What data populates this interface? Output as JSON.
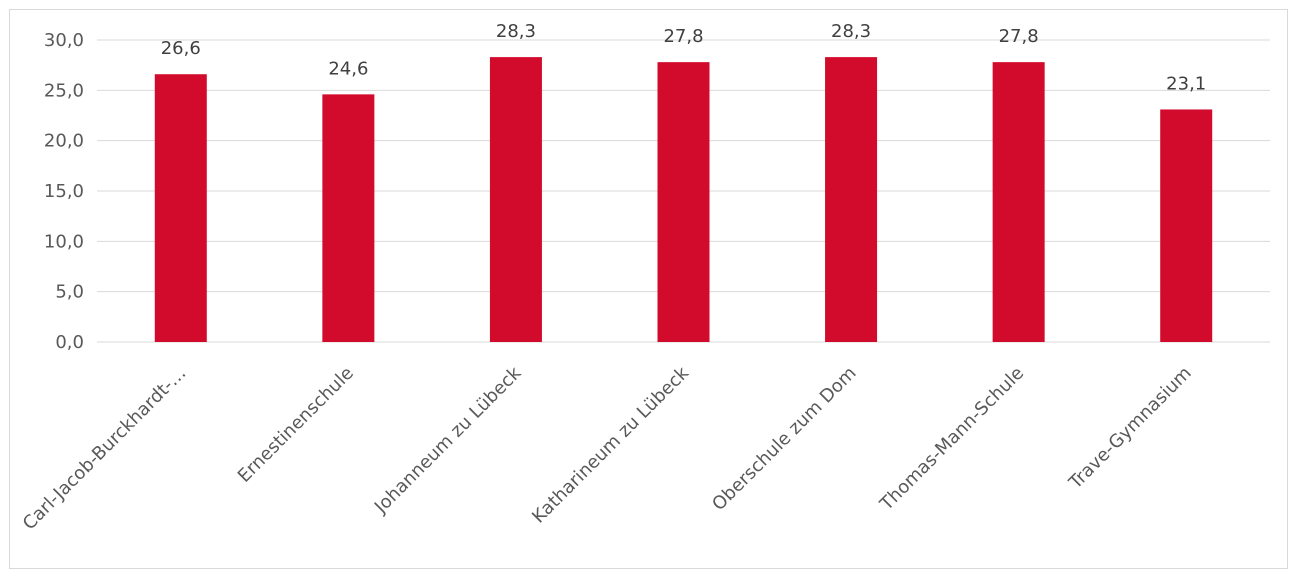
{
  "chart_data": {
    "type": "bar",
    "categories": [
      "Carl-Jacob-Burckhardt-…",
      "Ernestinenschule",
      "Johanneum zu Lübeck",
      "Katharineum zu Lübeck",
      "Oberschule zum Dom",
      "Thomas-Mann-Schule",
      "Trave-Gymnasium"
    ],
    "values": [
      26.6,
      24.6,
      28.3,
      27.8,
      28.3,
      27.8,
      23.1
    ],
    "value_labels": [
      "26,6",
      "24,6",
      "28,3",
      "27,8",
      "28,3",
      "27,8",
      "23,1"
    ],
    "yticks": [
      0,
      5,
      10,
      15,
      20,
      25,
      30
    ],
    "ytick_labels": [
      "0,0",
      "5,0",
      "10,0",
      "15,0",
      "20,0",
      "25,0",
      "30,0"
    ],
    "ylim": [
      0,
      30
    ],
    "grid": true,
    "legend": "none",
    "bar_color": "#d20a2b",
    "gridline_color": "#d9d9d9",
    "title": "",
    "xlabel": "",
    "ylabel": ""
  }
}
